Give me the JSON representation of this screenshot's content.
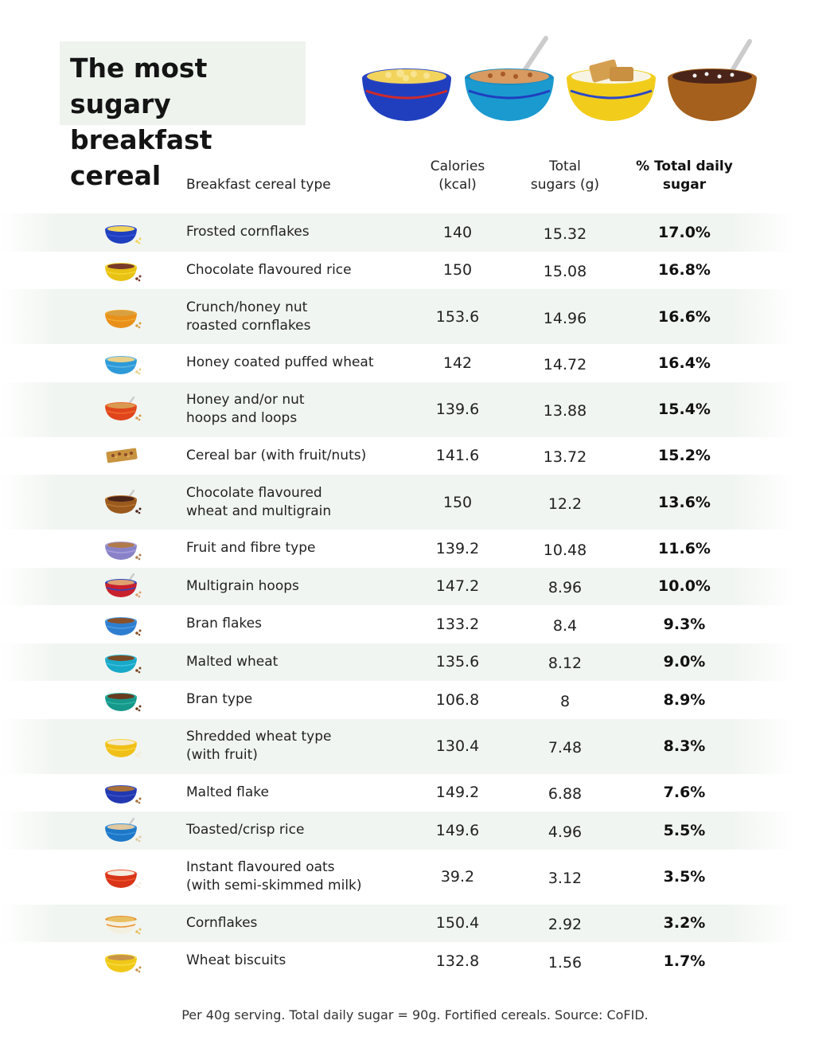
{
  "title": "The most sugary breakfast cereal",
  "title_lines": [
    "The most sugary",
    "breakfast cereal"
  ],
  "headers": {
    "type": "Breakfast cereal type",
    "calories": "Calories\n(kcal)",
    "sugars": "Total\nsugars (g)",
    "percent": "% Total daily\nsugar"
  },
  "rows": [
    {
      "name": "Frosted cornflakes",
      "calories": "140",
      "sugars": "15.32",
      "percent": "17.0%",
      "icon": "bowl-icon",
      "bowl": "#1f3fbf",
      "rim": "#3452d4",
      "fill": "#f2d45c",
      "spoon": false,
      "shaded": true
    },
    {
      "name": "Chocolate flavoured rice",
      "calories": "150",
      "sugars": "15.08",
      "percent": "16.8%",
      "icon": "bowl-icon",
      "bowl": "#e8c214",
      "rim": "#f5d630",
      "fill": "#7a3a2a",
      "spoon": false,
      "shaded": false
    },
    {
      "name": "Crunch/honey nut\nroasted cornflakes",
      "calories": "153.6",
      "sugars": "14.96",
      "percent": "16.6%",
      "icon": "bowl-icon",
      "bowl": "#e8901a",
      "rim": "#f2a82e",
      "fill": "#d8a040",
      "spoon": false,
      "shaded": true
    },
    {
      "name": "Honey coated puffed wheat",
      "calories": "142",
      "sugars": "14.72",
      "percent": "16.4%",
      "icon": "bowl-icon",
      "bowl": "#2e9ad8",
      "rim": "#5cb6e6",
      "fill": "#e8d08a",
      "spoon": false,
      "shaded": false
    },
    {
      "name": "Honey and/or nut\nhoops and loops",
      "calories": "139.6",
      "sugars": "13.88",
      "percent": "15.4%",
      "icon": "bowl-icon",
      "bowl": "#e0451c",
      "rim": "#ef6a2e",
      "fill": "#d89a50",
      "spoon": true,
      "shaded": true
    },
    {
      "name": "Cereal bar (with fruit/nuts)",
      "calories": "141.6",
      "sugars": "13.72",
      "percent": "15.2%",
      "icon": "cereal-bar-icon",
      "bowl": "#c9943f",
      "rim": "#e0b060",
      "fill": "#8a4a2a",
      "spoon": false,
      "shaded": false
    },
    {
      "name": "Chocolate flavoured\nwheat and multigrain",
      "calories": "150",
      "sugars": "12.2",
      "percent": "13.6%",
      "icon": "bowl-icon",
      "bowl": "#9a5a1e",
      "rim": "#b87430",
      "fill": "#4a2418",
      "spoon": true,
      "shaded": true
    },
    {
      "name": "Fruit and fibre type",
      "calories": "139.2",
      "sugars": "10.48",
      "percent": "11.6%",
      "icon": "bowl-icon",
      "bowl": "#8a82c8",
      "rim": "#a8a0dc",
      "fill": "#b07a4a",
      "spoon": false,
      "shaded": false
    },
    {
      "name": "Multigrain hoops",
      "calories": "147.2",
      "sugars": "8.96",
      "percent": "10.0%",
      "icon": "bowl-icon",
      "bowl": "#c8202c",
      "rim": "#2a48c8",
      "fill": "#e0a070",
      "spoon": true,
      "shaded": true
    },
    {
      "name": "Bran flakes",
      "calories": "133.2",
      "sugars": "8.4",
      "percent": "9.3%",
      "icon": "bowl-icon",
      "bowl": "#2e7ed0",
      "rim": "#4e9ae0",
      "fill": "#8a5028",
      "spoon": false,
      "shaded": false
    },
    {
      "name": "Malted wheat",
      "calories": "135.6",
      "sugars": "8.12",
      "percent": "9.0%",
      "icon": "bowl-icon",
      "bowl": "#18a8c8",
      "rim": "#3cc0dc",
      "fill": "#7a4a24",
      "spoon": false,
      "shaded": true
    },
    {
      "name": "Bran type",
      "calories": "106.8",
      "sugars": "8",
      "percent": "8.9%",
      "icon": "bowl-icon",
      "bowl": "#16988a",
      "rim": "#30b4a4",
      "fill": "#6a3a20",
      "spoon": false,
      "shaded": false
    },
    {
      "name": "Shredded wheat type\n(with fruit)",
      "calories": "130.4",
      "sugars": "7.48",
      "percent": "8.3%",
      "icon": "bowl-icon",
      "bowl": "#f0c018",
      "rim": "#f8d440",
      "fill": "#f4ead0",
      "spoon": false,
      "shaded": true
    },
    {
      "name": "Malted flake",
      "calories": "149.2",
      "sugars": "6.88",
      "percent": "7.6%",
      "icon": "bowl-icon",
      "bowl": "#2238b0",
      "rim": "#3a54c8",
      "fill": "#a87038",
      "spoon": false,
      "shaded": false
    },
    {
      "name": "Toasted/crisp rice",
      "calories": "149.6",
      "sugars": "4.96",
      "percent": "5.5%",
      "icon": "bowl-icon",
      "bowl": "#1e78c8",
      "rim": "#3e94dc",
      "fill": "#e0c8a0",
      "spoon": true,
      "shaded": true
    },
    {
      "name": "Instant flavoured oats\n(with semi-skimmed milk)",
      "calories": "39.2",
      "sugars": "3.12",
      "percent": "3.5%",
      "icon": "bowl-icon",
      "bowl": "#d83418",
      "rim": "#ec5430",
      "fill": "#f4ece0",
      "spoon": false,
      "shaded": false
    },
    {
      "name": "Cornflakes",
      "calories": "150.4",
      "sugars": "2.92",
      "percent": "3.2%",
      "icon": "bowl-icon",
      "bowl": "#f4f0e0",
      "rim": "#e89030",
      "fill": "#e8c060",
      "spoon": false,
      "shaded": true
    },
    {
      "name": "Wheat biscuits",
      "calories": "132.8",
      "sugars": "1.56",
      "percent": "1.7%",
      "icon": "bowl-icon",
      "bowl": "#f0c818",
      "rim": "#f8dc40",
      "fill": "#c89448",
      "spoon": false,
      "shaded": false
    }
  ],
  "footer": "Per 40g serving. Total daily sugar = 90g. Fortified cereals. Source: CoFID."
}
